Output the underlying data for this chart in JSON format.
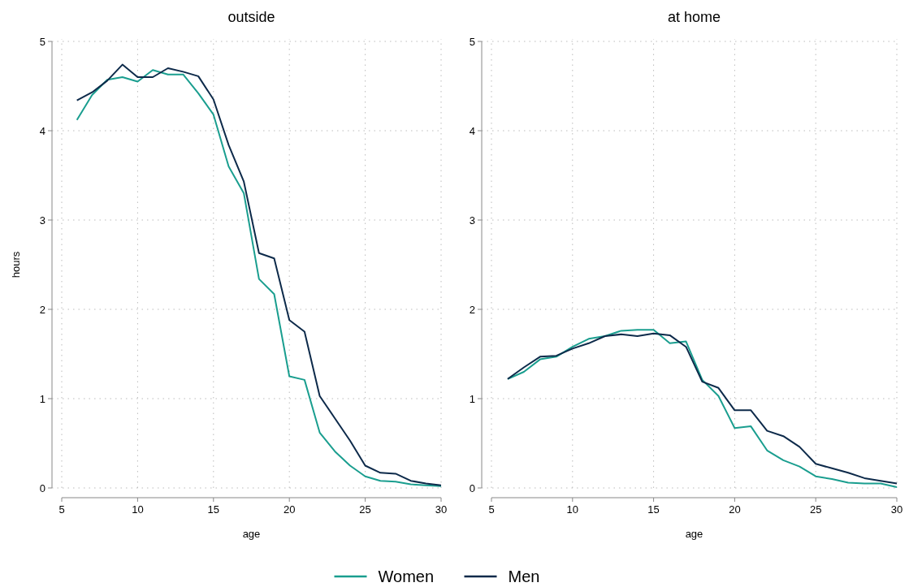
{
  "chart_data": [
    {
      "type": "line",
      "title": "outside",
      "xlabel": "age",
      "ylabel": "hours",
      "x": [
        6,
        7,
        8,
        9,
        10,
        11,
        12,
        13,
        14,
        15,
        16,
        17,
        18,
        19,
        20,
        21,
        22,
        23,
        24,
        25,
        26,
        27,
        28,
        29,
        30
      ],
      "xlim": [
        5,
        30
      ],
      "xticks": [
        5,
        10,
        15,
        20,
        25,
        30
      ],
      "ylim": [
        0,
        5
      ],
      "yticks": [
        0,
        1,
        2,
        3,
        4,
        5
      ],
      "grid": true,
      "legend": "bottom",
      "series": [
        {
          "name": "Women",
          "color": "#1a9e8f",
          "values": [
            4.12,
            4.4,
            4.57,
            4.6,
            4.55,
            4.68,
            4.63,
            4.63,
            4.42,
            4.18,
            3.6,
            3.3,
            2.34,
            2.17,
            1.25,
            1.21,
            0.62,
            0.41,
            0.25,
            0.13,
            0.08,
            0.07,
            0.04,
            0.03,
            0.02
          ]
        },
        {
          "name": "Men",
          "color": "#0d2a4a",
          "values": [
            4.34,
            4.43,
            4.56,
            4.74,
            4.6,
            4.6,
            4.7,
            4.66,
            4.61,
            4.35,
            3.84,
            3.43,
            2.63,
            2.57,
            1.88,
            1.75,
            1.03,
            0.78,
            0.53,
            0.25,
            0.17,
            0.16,
            0.08,
            0.05,
            0.03
          ]
        }
      ]
    },
    {
      "type": "line",
      "title": "at home",
      "xlabel": "age",
      "x": [
        6,
        7,
        8,
        9,
        10,
        11,
        12,
        13,
        14,
        15,
        16,
        17,
        18,
        19,
        20,
        21,
        22,
        23,
        24,
        25,
        26,
        27,
        28,
        29,
        30
      ],
      "xlim": [
        5,
        30
      ],
      "xticks": [
        5,
        10,
        15,
        20,
        25,
        30
      ],
      "ylim": [
        0,
        5
      ],
      "yticks": [
        0,
        1,
        2,
        3,
        4,
        5
      ],
      "grid": true,
      "series": [
        {
          "color": "#1a9e8f",
          "values": [
            1.22,
            1.3,
            1.44,
            1.47,
            1.58,
            1.67,
            1.7,
            1.76,
            1.77,
            1.77,
            1.62,
            1.64,
            1.21,
            1.03,
            0.67,
            0.69,
            0.42,
            0.31,
            0.24,
            0.13,
            0.1,
            0.06,
            0.05,
            0.05,
            0.01
          ]
        },
        {
          "color": "#0d2a4a",
          "values": [
            1.22,
            1.35,
            1.47,
            1.48,
            1.56,
            1.62,
            1.7,
            1.72,
            1.7,
            1.73,
            1.71,
            1.58,
            1.19,
            1.12,
            0.87,
            0.87,
            0.64,
            0.58,
            0.46,
            0.27,
            0.22,
            0.17,
            0.11,
            0.08,
            0.05
          ]
        }
      ]
    }
  ]
}
